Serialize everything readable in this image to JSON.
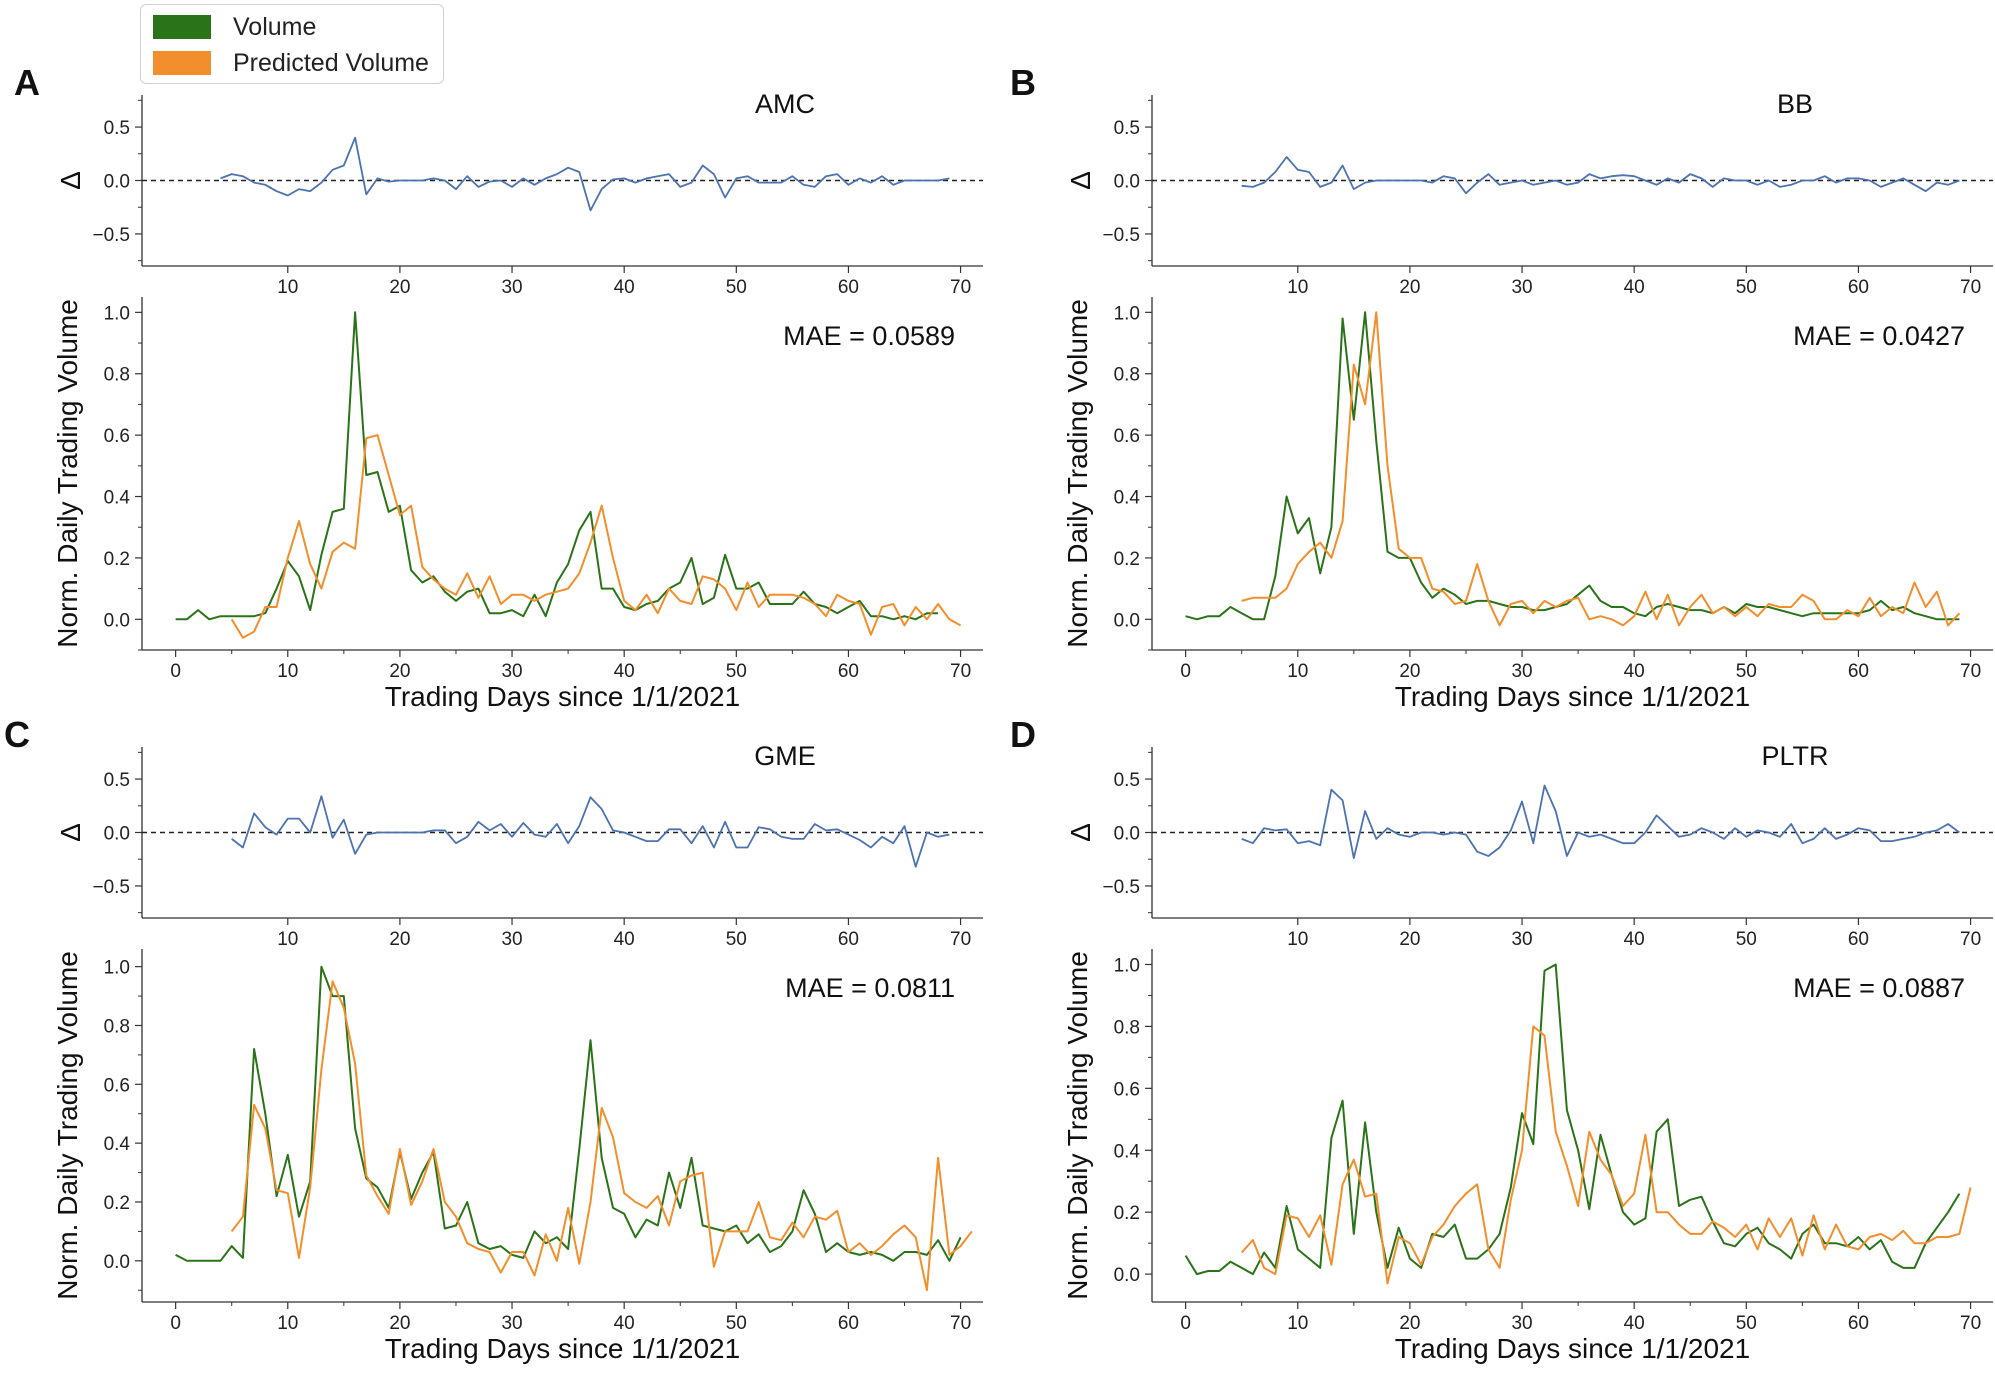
{
  "legend": {
    "volume_label": "Volume",
    "predicted_label": "Predicted Volume",
    "volume_color": "#2a7318",
    "predicted_color": "#f28e2b",
    "delta_color": "#4c72b0"
  },
  "chart_data": [
    {
      "type": "line",
      "panel_letter": "A",
      "title": "AMC",
      "mae_text": "MAE = 0.0589",
      "xlabel": "Trading Days since 1/1/2021",
      "ylabel": "Norm. Daily Trading Volume",
      "delta_ylabel": "Δ",
      "x_range": [
        -3,
        72
      ],
      "ylim": [
        -0.1,
        1.05
      ],
      "yticks": [
        0.0,
        0.2,
        0.4,
        0.6,
        0.8,
        1.0
      ],
      "xticks": [
        0,
        10,
        20,
        30,
        40,
        50,
        60,
        70
      ],
      "delta_ylim": [
        -0.8,
        0.8
      ],
      "delta_yticks": [
        -0.5,
        0.0,
        0.5
      ],
      "delta_xticks": [
        10,
        20,
        30,
        40,
        50,
        60,
        70
      ],
      "volume": [
        0.0,
        0.0,
        0.03,
        0.0,
        0.01,
        0.01,
        0.01,
        0.01,
        0.02,
        0.1,
        0.19,
        0.14,
        0.03,
        0.21,
        0.35,
        0.36,
        1.0,
        0.47,
        0.48,
        0.35,
        0.37,
        0.16,
        0.12,
        0.14,
        0.09,
        0.06,
        0.09,
        0.1,
        0.02,
        0.02,
        0.03,
        0.01,
        0.08,
        0.01,
        0.12,
        0.18,
        0.29,
        0.35,
        0.1,
        0.1,
        0.04,
        0.03,
        0.05,
        0.06,
        0.1,
        0.12,
        0.2,
        0.05,
        0.07,
        0.21,
        0.1,
        0.1,
        0.12,
        0.05,
        0.05,
        0.05,
        0.09,
        0.05,
        0.04,
        0.02,
        0.04,
        0.06,
        0.01,
        0.01,
        0.0,
        0.01,
        0.0,
        0.02,
        0.02
      ],
      "predicted_start": 5,
      "predicted": [
        0.0,
        -0.06,
        -0.04,
        0.04,
        0.04,
        0.2,
        0.32,
        0.18,
        0.1,
        0.22,
        0.25,
        0.23,
        0.59,
        0.6,
        0.47,
        0.34,
        0.37,
        0.17,
        0.13,
        0.1,
        0.08,
        0.15,
        0.07,
        0.14,
        0.05,
        0.08,
        0.08,
        0.06,
        0.08,
        0.09,
        0.1,
        0.15,
        0.25,
        0.37,
        0.2,
        0.06,
        0.03,
        0.08,
        0.02,
        0.1,
        0.06,
        0.05,
        0.14,
        0.13,
        0.1,
        0.03,
        0.12,
        0.04,
        0.08,
        0.08,
        0.08,
        0.07,
        0.05,
        0.01,
        0.08,
        0.06,
        0.05,
        -0.05,
        0.04,
        0.05,
        -0.02,
        0.04,
        0.0,
        0.05,
        0.0,
        -0.02
      ],
      "delta_start": 4,
      "delta": [
        0.02,
        0.06,
        0.04,
        -0.02,
        -0.04,
        -0.1,
        -0.14,
        -0.08,
        -0.1,
        -0.02,
        0.1,
        0.14,
        0.4,
        -0.13,
        0.02,
        -0.01,
        0.0,
        0.0,
        0.0,
        0.02,
        0.0,
        -0.08,
        0.04,
        -0.06,
        -0.01,
        0.0,
        -0.06,
        0.02,
        -0.04,
        0.02,
        0.06,
        0.12,
        0.08,
        -0.28,
        -0.08,
        0.01,
        0.02,
        -0.02,
        0.02,
        0.04,
        0.06,
        -0.06,
        -0.02,
        0.14,
        0.06,
        -0.16,
        0.02,
        0.04,
        -0.02,
        -0.02,
        -0.02,
        0.04,
        -0.04,
        -0.06,
        0.04,
        0.06,
        -0.04,
        0.02,
        -0.02,
        0.04,
        -0.04,
        0.0,
        0.0,
        0.0,
        0.0,
        0.02
      ]
    },
    {
      "type": "line",
      "panel_letter": "B",
      "title": "BB",
      "mae_text": "MAE = 0.0427",
      "xlabel": "Trading Days since 1/1/2021",
      "ylabel": "Norm. Daily Trading Volume",
      "delta_ylabel": "Δ",
      "x_range": [
        -3,
        72
      ],
      "ylim": [
        -0.1,
        1.05
      ],
      "yticks": [
        0.0,
        0.2,
        0.4,
        0.6,
        0.8,
        1.0
      ],
      "xticks": [
        0,
        10,
        20,
        30,
        40,
        50,
        60,
        70
      ],
      "delta_ylim": [
        -0.8,
        0.8
      ],
      "delta_yticks": [
        -0.5,
        0.0,
        0.5
      ],
      "delta_xticks": [
        10,
        20,
        30,
        40,
        50,
        60,
        70
      ],
      "volume": [
        0.01,
        0.0,
        0.01,
        0.01,
        0.04,
        0.02,
        0.0,
        0.0,
        0.14,
        0.4,
        0.28,
        0.33,
        0.15,
        0.3,
        0.98,
        0.65,
        1.0,
        0.58,
        0.22,
        0.2,
        0.2,
        0.12,
        0.07,
        0.1,
        0.08,
        0.05,
        0.06,
        0.06,
        0.05,
        0.04,
        0.04,
        0.03,
        0.03,
        0.04,
        0.05,
        0.08,
        0.11,
        0.06,
        0.04,
        0.04,
        0.02,
        0.01,
        0.04,
        0.05,
        0.04,
        0.03,
        0.03,
        0.02,
        0.04,
        0.02,
        0.05,
        0.04,
        0.04,
        0.03,
        0.02,
        0.01,
        0.02,
        0.02,
        0.02,
        0.02,
        0.02,
        0.03,
        0.06,
        0.03,
        0.04,
        0.02,
        0.01,
        0.0,
        0.0,
        0.0
      ],
      "predicted_start": 5,
      "predicted": [
        0.06,
        0.07,
        0.07,
        0.07,
        0.1,
        0.18,
        0.22,
        0.25,
        0.2,
        0.32,
        0.83,
        0.7,
        1.0,
        0.5,
        0.23,
        0.2,
        0.2,
        0.1,
        0.09,
        0.05,
        0.06,
        0.18,
        0.06,
        -0.02,
        0.05,
        0.06,
        0.02,
        0.06,
        0.04,
        0.06,
        0.07,
        0.0,
        0.01,
        0.0,
        -0.02,
        0.01,
        0.09,
        0.0,
        0.08,
        -0.02,
        0.04,
        0.08,
        0.02,
        0.04,
        0.01,
        0.04,
        0.01,
        0.05,
        0.04,
        0.04,
        0.08,
        0.06,
        0.0,
        0.0,
        0.03,
        0.01,
        0.07,
        0.01,
        0.04,
        0.02,
        0.12,
        0.04,
        0.09,
        -0.02,
        0.02
      ],
      "delta_start": 5,
      "delta": [
        -0.05,
        -0.06,
        -0.02,
        0.08,
        0.22,
        0.1,
        0.08,
        -0.06,
        -0.02,
        0.14,
        -0.08,
        -0.02,
        0.0,
        0.0,
        0.0,
        0.0,
        0.0,
        -0.02,
        0.04,
        0.02,
        -0.12,
        -0.02,
        0.06,
        -0.04,
        -0.02,
        0.0,
        -0.04,
        -0.02,
        0.0,
        -0.04,
        -0.02,
        0.06,
        0.02,
        0.04,
        0.05,
        0.04,
        0.0,
        -0.04,
        0.02,
        -0.02,
        0.06,
        0.02,
        -0.06,
        0.02,
        0.0,
        0.0,
        -0.04,
        0.0,
        -0.06,
        -0.04,
        0.0,
        0.0,
        0.04,
        -0.02,
        0.02,
        0.02,
        0.0,
        -0.06,
        -0.02,
        0.02,
        -0.04,
        -0.1,
        -0.02,
        -0.04,
        0.0
      ]
    },
    {
      "type": "line",
      "panel_letter": "C",
      "title": "GME",
      "mae_text": "MAE = 0.0811",
      "xlabel": "Trading Days since 1/1/2021",
      "ylabel": "Norm. Daily Trading Volume",
      "delta_ylabel": "Δ",
      "x_range": [
        -3,
        72
      ],
      "ylim": [
        -0.14,
        1.06
      ],
      "yticks": [
        0.0,
        0.2,
        0.4,
        0.6,
        0.8,
        1.0
      ],
      "xticks": [
        0,
        10,
        20,
        30,
        40,
        50,
        60,
        70
      ],
      "delta_ylim": [
        -0.8,
        0.8
      ],
      "delta_yticks": [
        -0.5,
        0.0,
        0.5
      ],
      "delta_xticks": [
        10,
        20,
        30,
        40,
        50,
        60,
        70
      ],
      "volume": [
        0.02,
        0.0,
        0.0,
        0.0,
        0.0,
        0.05,
        0.01,
        0.72,
        0.5,
        0.22,
        0.36,
        0.15,
        0.27,
        1.0,
        0.9,
        0.9,
        0.45,
        0.28,
        0.25,
        0.18,
        0.37,
        0.21,
        0.3,
        0.37,
        0.11,
        0.12,
        0.2,
        0.06,
        0.04,
        0.05,
        0.02,
        0.01,
        0.1,
        0.06,
        0.08,
        0.04,
        0.38,
        0.75,
        0.35,
        0.18,
        0.16,
        0.08,
        0.14,
        0.12,
        0.3,
        0.18,
        0.35,
        0.12,
        0.11,
        0.1,
        0.12,
        0.06,
        0.09,
        0.03,
        0.05,
        0.1,
        0.24,
        0.16,
        0.03,
        0.06,
        0.03,
        0.02,
        0.03,
        0.02,
        0.0,
        0.03,
        0.03,
        0.02,
        0.07,
        0.0,
        0.08
      ],
      "predicted_start": 5,
      "predicted": [
        0.1,
        0.15,
        0.53,
        0.45,
        0.24,
        0.23,
        0.01,
        0.25,
        0.65,
        0.95,
        0.86,
        0.67,
        0.29,
        0.22,
        0.16,
        0.38,
        0.19,
        0.27,
        0.38,
        0.2,
        0.15,
        0.06,
        0.04,
        0.03,
        -0.04,
        0.03,
        0.03,
        -0.05,
        0.09,
        0.0,
        0.18,
        -0.01,
        0.2,
        0.52,
        0.42,
        0.23,
        0.2,
        0.18,
        0.22,
        0.12,
        0.27,
        0.29,
        0.3,
        -0.02,
        0.1,
        0.1,
        0.1,
        0.2,
        0.08,
        0.07,
        0.13,
        0.08,
        0.15,
        0.14,
        0.17,
        0.03,
        0.06,
        0.02,
        0.05,
        0.09,
        0.12,
        0.08,
        -0.1,
        0.35,
        0.02,
        0.05,
        0.1
      ],
      "delta_start": 5,
      "delta": [
        -0.06,
        -0.14,
        0.18,
        0.05,
        -0.02,
        0.13,
        0.13,
        0.0,
        0.34,
        -0.05,
        0.12,
        -0.2,
        -0.02,
        0.0,
        0.0,
        0.0,
        0.0,
        0.0,
        0.02,
        0.02,
        -0.1,
        -0.04,
        0.1,
        0.02,
        0.08,
        -0.04,
        0.09,
        -0.02,
        -0.04,
        0.08,
        -0.1,
        0.06,
        0.33,
        0.22,
        0.02,
        0.0,
        -0.04,
        -0.08,
        -0.08,
        0.03,
        0.03,
        -0.1,
        0.06,
        -0.14,
        0.1,
        -0.14,
        -0.14,
        0.05,
        0.03,
        -0.04,
        -0.06,
        -0.06,
        0.08,
        0.02,
        0.03,
        -0.02,
        -0.07,
        -0.14,
        -0.04,
        -0.1,
        0.06,
        -0.32,
        0.0,
        -0.04,
        -0.02
      ]
    },
    {
      "type": "line",
      "panel_letter": "D",
      "title": "PLTR",
      "mae_text": "MAE = 0.0887",
      "xlabel": "Trading Days since 1/1/2021",
      "ylabel": "Norm. Daily Trading Volume",
      "delta_ylabel": "Δ",
      "x_range": [
        -3,
        72
      ],
      "ylim": [
        -0.09,
        1.05
      ],
      "yticks": [
        0.0,
        0.2,
        0.4,
        0.6,
        0.8,
        1.0
      ],
      "xticks": [
        0,
        10,
        20,
        30,
        40,
        50,
        60,
        70
      ],
      "delta_ylim": [
        -0.8,
        0.8
      ],
      "delta_yticks": [
        -0.5,
        0.0,
        0.5
      ],
      "delta_xticks": [
        10,
        20,
        30,
        40,
        50,
        60,
        70
      ],
      "volume": [
        0.06,
        0.0,
        0.01,
        0.01,
        0.04,
        0.02,
        0.0,
        0.07,
        0.02,
        0.22,
        0.08,
        0.05,
        0.02,
        0.44,
        0.56,
        0.13,
        0.49,
        0.2,
        0.02,
        0.15,
        0.05,
        0.02,
        0.13,
        0.12,
        0.16,
        0.05,
        0.05,
        0.08,
        0.13,
        0.28,
        0.52,
        0.42,
        0.98,
        1.0,
        0.53,
        0.4,
        0.21,
        0.45,
        0.32,
        0.2,
        0.16,
        0.18,
        0.46,
        0.5,
        0.22,
        0.24,
        0.25,
        0.17,
        0.1,
        0.09,
        0.13,
        0.15,
        0.1,
        0.08,
        0.05,
        0.13,
        0.16,
        0.1,
        0.1,
        0.09,
        0.12,
        0.08,
        0.11,
        0.04,
        0.02,
        0.02,
        0.1,
        0.15,
        0.2,
        0.26
      ],
      "predicted_start": 5,
      "predicted": [
        0.07,
        0.11,
        0.02,
        0.0,
        0.19,
        0.18,
        0.12,
        0.19,
        0.03,
        0.29,
        0.37,
        0.25,
        0.26,
        -0.03,
        0.12,
        0.1,
        0.03,
        0.12,
        0.16,
        0.22,
        0.26,
        0.29,
        0.08,
        0.02,
        0.24,
        0.4,
        0.8,
        0.77,
        0.46,
        0.35,
        0.22,
        0.46,
        0.37,
        0.32,
        0.22,
        0.26,
        0.45,
        0.2,
        0.2,
        0.16,
        0.13,
        0.13,
        0.17,
        0.15,
        0.12,
        0.16,
        0.08,
        0.18,
        0.12,
        0.18,
        0.06,
        0.19,
        0.08,
        0.16,
        0.09,
        0.08,
        0.12,
        0.13,
        0.11,
        0.14,
        0.1,
        0.1,
        0.12,
        0.12,
        0.13,
        0.28
      ],
      "delta_start": 5,
      "delta": [
        -0.06,
        -0.1,
        0.04,
        0.02,
        0.03,
        -0.1,
        -0.08,
        -0.12,
        0.4,
        0.3,
        -0.24,
        0.2,
        -0.06,
        0.04,
        -0.02,
        -0.04,
        0.0,
        0.0,
        -0.02,
        0.0,
        -0.02,
        -0.18,
        -0.22,
        -0.14,
        0.02,
        0.29,
        -0.1,
        0.44,
        0.2,
        -0.22,
        0.0,
        -0.04,
        -0.02,
        -0.06,
        -0.1,
        -0.1,
        0.0,
        0.16,
        0.06,
        -0.04,
        -0.02,
        0.04,
        0.0,
        -0.06,
        0.04,
        -0.04,
        0.02,
        0.0,
        -0.04,
        0.08,
        -0.1,
        -0.06,
        0.04,
        -0.06,
        -0.02,
        0.04,
        0.02,
        -0.08,
        -0.08,
        -0.06,
        -0.04,
        0.0,
        0.02,
        0.08,
        0.0
      ]
    }
  ]
}
